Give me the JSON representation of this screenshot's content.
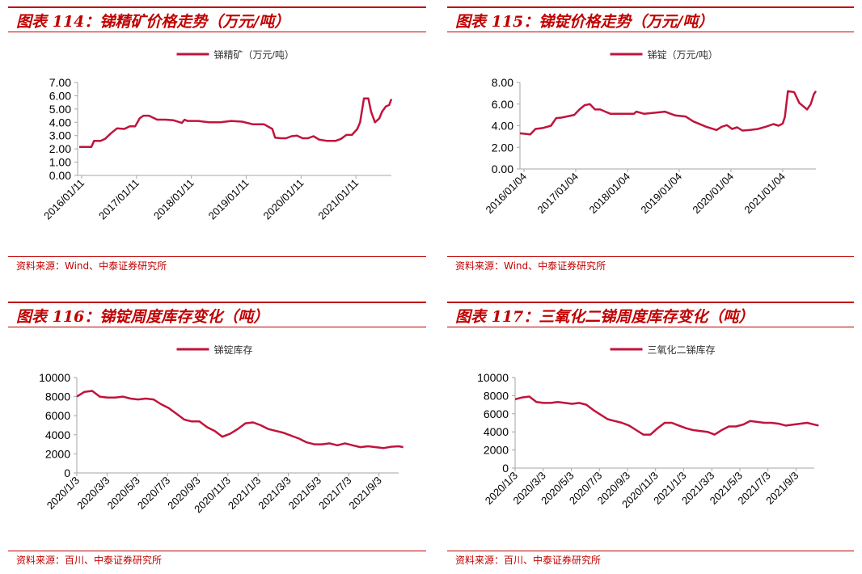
{
  "colors": {
    "accent": "#c00000",
    "series": "#c0143c",
    "axis": "#a6a6a6"
  },
  "panels": [
    {
      "title": "图表 114：锑精矿价格走势（万元/吨）",
      "source": "资料来源：Wind、中泰证券研究所"
    },
    {
      "title": "图表 115：锑锭价格走势（万元/吨）",
      "source": "资料来源：Wind、中泰证券研究所"
    },
    {
      "title": "图表 116：锑锭周度库存变化（吨）",
      "source": "资料来源：百川、中泰证券研究所"
    },
    {
      "title": "图表 117：三氧化二锑周度库存变化（吨）",
      "source": "资料来源：百川、中泰证券研究所"
    }
  ],
  "chart_data": [
    {
      "type": "line",
      "title": "",
      "legend": "top-center",
      "ylim": [
        0,
        7
      ],
      "yticks": [
        "0.00",
        "1.00",
        "2.00",
        "3.00",
        "4.00",
        "5.00",
        "6.00",
        "7.00"
      ],
      "xticks": [
        "2016/01/11",
        "2017/01/11",
        "2018/01/11",
        "2019/01/11",
        "2020/01/11",
        "2021/01/11"
      ],
      "xrange": [
        2016.0,
        2021.72
      ],
      "series": [
        {
          "name": "锑精矿（万元/吨）",
          "x": [
            2016.03,
            2016.25,
            2016.3,
            2016.42,
            2016.5,
            2016.6,
            2016.72,
            2016.85,
            2016.95,
            2017.05,
            2017.13,
            2017.2,
            2017.3,
            2017.45,
            2017.6,
            2017.75,
            2017.9,
            2017.95,
            2018.0,
            2018.2,
            2018.4,
            2018.6,
            2018.8,
            2019.0,
            2019.2,
            2019.4,
            2019.55,
            2019.6,
            2019.7,
            2019.8,
            2019.9,
            2020.0,
            2020.1,
            2020.2,
            2020.3,
            2020.4,
            2020.55,
            2020.7,
            2020.8,
            2020.9,
            2021.0,
            2021.1,
            2021.15,
            2021.22,
            2021.3,
            2021.35,
            2021.42,
            2021.5,
            2021.55,
            2021.62,
            2021.68,
            2021.72
          ],
          "y": [
            2.15,
            2.15,
            2.6,
            2.6,
            2.75,
            3.15,
            3.55,
            3.5,
            3.7,
            3.7,
            4.3,
            4.5,
            4.5,
            4.2,
            4.2,
            4.15,
            3.95,
            4.2,
            4.1,
            4.1,
            4.0,
            4.0,
            4.1,
            4.05,
            3.85,
            3.85,
            3.5,
            2.85,
            2.8,
            2.8,
            2.95,
            3.0,
            2.8,
            2.8,
            2.95,
            2.7,
            2.6,
            2.6,
            2.75,
            3.05,
            3.05,
            3.5,
            4.0,
            5.8,
            5.8,
            4.8,
            4.0,
            4.3,
            4.8,
            5.2,
            5.3,
            5.75
          ]
        }
      ]
    },
    {
      "type": "line",
      "title": "",
      "legend": "top-center",
      "ylim": [
        0,
        8
      ],
      "yticks": [
        "0.00",
        "2.00",
        "4.00",
        "6.00",
        "8.00"
      ],
      "xticks": [
        "2016/01/04",
        "2017/01/04",
        "2018/01/04",
        "2019/01/04",
        "2020/01/04",
        "2021/01/04"
      ],
      "xrange": [
        2016.0,
        2021.72
      ],
      "series": [
        {
          "name": "锑锭（万元/吨）",
          "x": [
            2016.0,
            2016.2,
            2016.3,
            2016.45,
            2016.6,
            2016.7,
            2016.8,
            2016.95,
            2017.05,
            2017.15,
            2017.25,
            2017.35,
            2017.45,
            2017.55,
            2017.65,
            2017.75,
            2018.0,
            2018.2,
            2018.25,
            2018.4,
            2018.6,
            2018.8,
            2019.0,
            2019.2,
            2019.35,
            2019.5,
            2019.6,
            2019.7,
            2019.8,
            2019.9,
            2020.0,
            2020.1,
            2020.2,
            2020.3,
            2020.45,
            2020.6,
            2020.75,
            2020.9,
            2021.0,
            2021.08,
            2021.12,
            2021.18,
            2021.3,
            2021.4,
            2021.45,
            2021.55,
            2021.62,
            2021.68,
            2021.72
          ],
          "y": [
            3.3,
            3.2,
            3.7,
            3.8,
            4.0,
            4.7,
            4.75,
            4.9,
            5.0,
            5.5,
            5.9,
            6.0,
            5.5,
            5.5,
            5.3,
            5.1,
            5.1,
            5.1,
            5.3,
            5.1,
            5.2,
            5.3,
            4.95,
            4.85,
            4.4,
            4.1,
            3.9,
            3.75,
            3.6,
            3.9,
            4.05,
            3.7,
            3.85,
            3.55,
            3.6,
            3.7,
            3.9,
            4.15,
            4.0,
            4.2,
            4.8,
            7.2,
            7.1,
            6.1,
            5.9,
            5.5,
            6.0,
            6.9,
            7.2
          ]
        }
      ]
    },
    {
      "type": "line",
      "title": "",
      "legend": "top-center",
      "ylim": [
        0,
        10000
      ],
      "yticks": [
        "0",
        "2000",
        "4000",
        "6000",
        "8000",
        "10000"
      ],
      "xticks": [
        "2020/1/3",
        "2020/3/3",
        "2020/5/3",
        "2020/7/3",
        "2020/9/3",
        "2020/11/3",
        "2021/1/3",
        "2021/3/3",
        "2021/5/3",
        "2021/7/3",
        "2021/9/3"
      ],
      "xrange": [
        0,
        21
      ],
      "series": [
        {
          "name": "锑锭库存",
          "x": [
            0,
            0.5,
            1,
            1.5,
            2,
            2.5,
            3,
            3.5,
            4,
            4.5,
            5,
            5.5,
            6,
            6.5,
            7,
            7.5,
            8,
            8.5,
            9,
            9.5,
            10,
            10.5,
            11,
            11.5,
            12,
            12.5,
            13,
            13.5,
            14,
            14.5,
            15,
            15.5,
            16,
            16.5,
            17,
            17.5,
            18,
            18.5,
            19,
            19.5,
            20,
            20.5,
            21,
            21.3
          ],
          "y": [
            8000,
            8500,
            8600,
            8000,
            7900,
            7900,
            8000,
            7800,
            7700,
            7800,
            7700,
            7200,
            6800,
            6200,
            5600,
            5400,
            5400,
            4800,
            4400,
            3800,
            4100,
            4600,
            5200,
            5300,
            5000,
            4600,
            4400,
            4200,
            3900,
            3600,
            3200,
            3000,
            3000,
            3100,
            2900,
            3100,
            2900,
            2700,
            2800,
            2700,
            2600,
            2750,
            2800,
            2700
          ]
        }
      ]
    },
    {
      "type": "line",
      "title": "",
      "legend": "top-center",
      "ylim": [
        0,
        10000
      ],
      "yticks": [
        "0",
        "2000",
        "4000",
        "6000",
        "8000",
        "10000"
      ],
      "xticks": [
        "2020/1/3",
        "2020/3/3",
        "2020/5/3",
        "2020/7/3",
        "2020/9/3",
        "2020/11/3",
        "2021/1/3",
        "2021/3/3",
        "2021/5/3",
        "2021/7/3",
        "2021/9/3"
      ],
      "xrange": [
        0,
        21
      ],
      "series": [
        {
          "name": "三氧化二锑库存",
          "x": [
            0,
            0.5,
            1,
            1.5,
            2,
            2.5,
            3,
            3.5,
            4,
            4.5,
            5,
            5.5,
            6,
            6.5,
            7,
            7.5,
            8,
            8.5,
            9,
            9.5,
            10,
            10.5,
            11,
            11.5,
            12,
            12.5,
            13,
            13.5,
            14,
            14.5,
            15,
            15.5,
            16,
            16.5,
            17,
            17.5,
            18,
            18.5,
            19,
            19.5,
            20,
            20.5,
            21,
            21.3
          ],
          "y": [
            7600,
            7800,
            7900,
            7300,
            7200,
            7200,
            7300,
            7200,
            7100,
            7200,
            7000,
            6400,
            5900,
            5400,
            5200,
            5000,
            4700,
            4200,
            3700,
            3700,
            4400,
            5000,
            5000,
            4700,
            4400,
            4200,
            4100,
            4000,
            3700,
            4200,
            4600,
            4600,
            4800,
            5200,
            5100,
            5000,
            5000,
            4900,
            4700,
            4800,
            4900,
            5000,
            4800,
            4700
          ]
        }
      ]
    }
  ]
}
